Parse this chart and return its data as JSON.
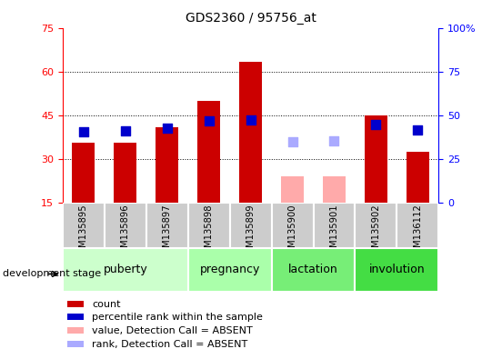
{
  "title": "GDS2360 / 95756_at",
  "samples": [
    "GSM135895",
    "GSM135896",
    "GSM135897",
    "GSM135898",
    "GSM135899",
    "GSM135900",
    "GSM135901",
    "GSM135902",
    "GSM136112"
  ],
  "count_values": [
    35.5,
    35.5,
    41.0,
    50.0,
    63.5,
    null,
    null,
    45.0,
    32.5
  ],
  "count_absent_values": [
    null,
    null,
    null,
    null,
    null,
    24.0,
    24.0,
    null,
    null
  ],
  "rank_values": [
    40.5,
    41.0,
    42.5,
    46.5,
    47.5,
    null,
    null,
    44.5,
    41.5
  ],
  "rank_absent_values": [
    null,
    null,
    null,
    null,
    null,
    34.5,
    35.5,
    null,
    null
  ],
  "left_ylim": [
    15,
    75
  ],
  "left_yticks": [
    15,
    30,
    45,
    60,
    75
  ],
  "right_ylim": [
    0,
    100
  ],
  "right_yticks": [
    0,
    25,
    50,
    75,
    100
  ],
  "right_yticklabels": [
    "0",
    "25",
    "50",
    "75",
    "100%"
  ],
  "count_color": "#cc0000",
  "rank_color": "#0000cc",
  "count_absent_color": "#ffaaaa",
  "rank_absent_color": "#aaaaff",
  "grid_yticks": [
    30,
    45,
    60
  ],
  "stage_boundaries": [
    {
      "label": "puberty",
      "start": 0,
      "end": 3,
      "color": "#ccffcc"
    },
    {
      "label": "pregnancy",
      "start": 3,
      "end": 5,
      "color": "#aaffaa"
    },
    {
      "label": "lactation",
      "start": 5,
      "end": 7,
      "color": "#77ee77"
    },
    {
      "label": "involution",
      "start": 7,
      "end": 9,
      "color": "#44dd44"
    }
  ],
  "legend_items": [
    {
      "label": "count",
      "color": "#cc0000"
    },
    {
      "label": "percentile rank within the sample",
      "color": "#0000cc"
    },
    {
      "label": "value, Detection Call = ABSENT",
      "color": "#ffaaaa"
    },
    {
      "label": "rank, Detection Call = ABSENT",
      "color": "#aaaaff"
    }
  ]
}
